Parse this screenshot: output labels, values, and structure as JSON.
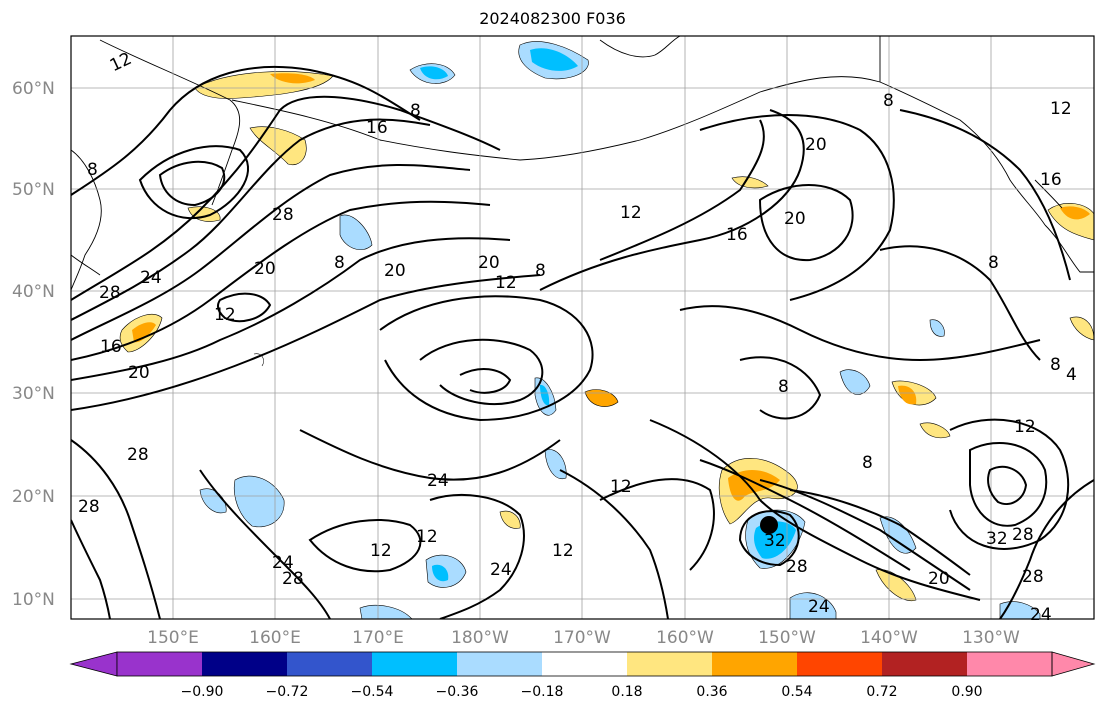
{
  "title": "2024082300 F036",
  "map": {
    "lat_labels": [
      "60°N",
      "50°N",
      "40°N",
      "30°N",
      "20°N",
      "10°N"
    ],
    "lat_values": [
      60,
      50,
      40,
      30,
      20,
      10
    ],
    "lon_labels": [
      "150°E",
      "160°E",
      "170°E",
      "180°W",
      "170°W",
      "160°W",
      "150°W",
      "140°W",
      "130°W"
    ],
    "lon_values": [
      150,
      160,
      170,
      180,
      190,
      200,
      210,
      220,
      230
    ],
    "lat_range": [
      8,
      65
    ],
    "lon_range": [
      140,
      240
    ],
    "grid": true,
    "contour_labels": [
      "12",
      "8",
      "16",
      "8",
      "12",
      "20",
      "8",
      "16",
      "28",
      "24",
      "20",
      "28",
      "20",
      "20",
      "12",
      "8",
      "12",
      "16",
      "20",
      "8",
      "8",
      "8",
      "16",
      "20",
      "28",
      "24",
      "12",
      "12",
      "12",
      "24",
      "28",
      "12",
      "24",
      "28",
      "24",
      "32",
      "28",
      "20",
      "28",
      "32",
      "28",
      "12",
      "8",
      "4",
      "8",
      "24",
      "12"
    ],
    "storm_marker": {
      "lon": 209.7,
      "lat": 17
    }
  },
  "colorbar": {
    "tick_labels": [
      "−0.90",
      "−0.72",
      "−0.54",
      "−0.36",
      "−0.18",
      "0.18",
      "0.36",
      "0.54",
      "0.72",
      "0.90"
    ],
    "colors": [
      "#9933cc",
      "#000088",
      "#3355cc",
      "#00bfff",
      "#aadcff",
      "#ffffff",
      "#ffe680",
      "#ffa500",
      "#ff4500",
      "#b22222",
      "#ff88aa"
    ],
    "extend": "both"
  }
}
